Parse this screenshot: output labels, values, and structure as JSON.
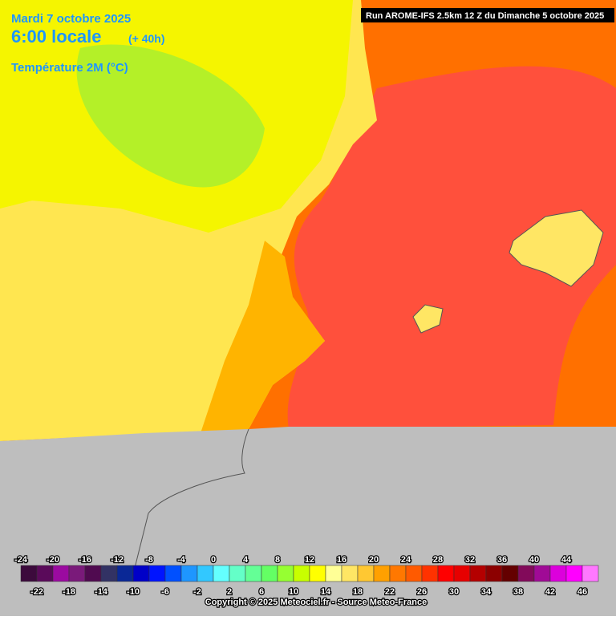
{
  "header": {
    "date": "Mardi 7 octobre 2025",
    "time": "6:00 locale",
    "lead": "(+ 40h)",
    "variable": "Température 2M (°C)",
    "run": "Run AROME-IFS 2.5km 12 Z du Dimanche 5 octobre 2025"
  },
  "legend": {
    "ticks": [
      -24,
      -22,
      -20,
      -18,
      -16,
      -14,
      -12,
      -10,
      -8,
      -6,
      -4,
      -2,
      0,
      2,
      4,
      6,
      8,
      10,
      12,
      14,
      16,
      18,
      20,
      22,
      24,
      26,
      28,
      30,
      32,
      34,
      36,
      38,
      40,
      42,
      44,
      46
    ],
    "colors": [
      "#3c0a3c",
      "#5a0a5a",
      "#9b0aa0",
      "#7a1a7a",
      "#500a50",
      "#323264",
      "#0a2896",
      "#0000c8",
      "#0014ff",
      "#0050ff",
      "#1e96ff",
      "#32c8ff",
      "#64ffff",
      "#64ffc8",
      "#64ff96",
      "#64ff64",
      "#96ff32",
      "#c8ff00",
      "#ffff00",
      "#ffff96",
      "#ffe664",
      "#ffc832",
      "#ffa000",
      "#ff7800",
      "#ff5a00",
      "#ff3200",
      "#ff0000",
      "#e60000",
      "#b40000",
      "#8c0000",
      "#640000",
      "#820a5a",
      "#a00a96",
      "#dc00dc",
      "#ff00ff",
      "#ff78ff"
    ]
  },
  "footer": {
    "copyright": "Copyright © 2025 Meteociel.fr - Source Meteo-France"
  }
}
